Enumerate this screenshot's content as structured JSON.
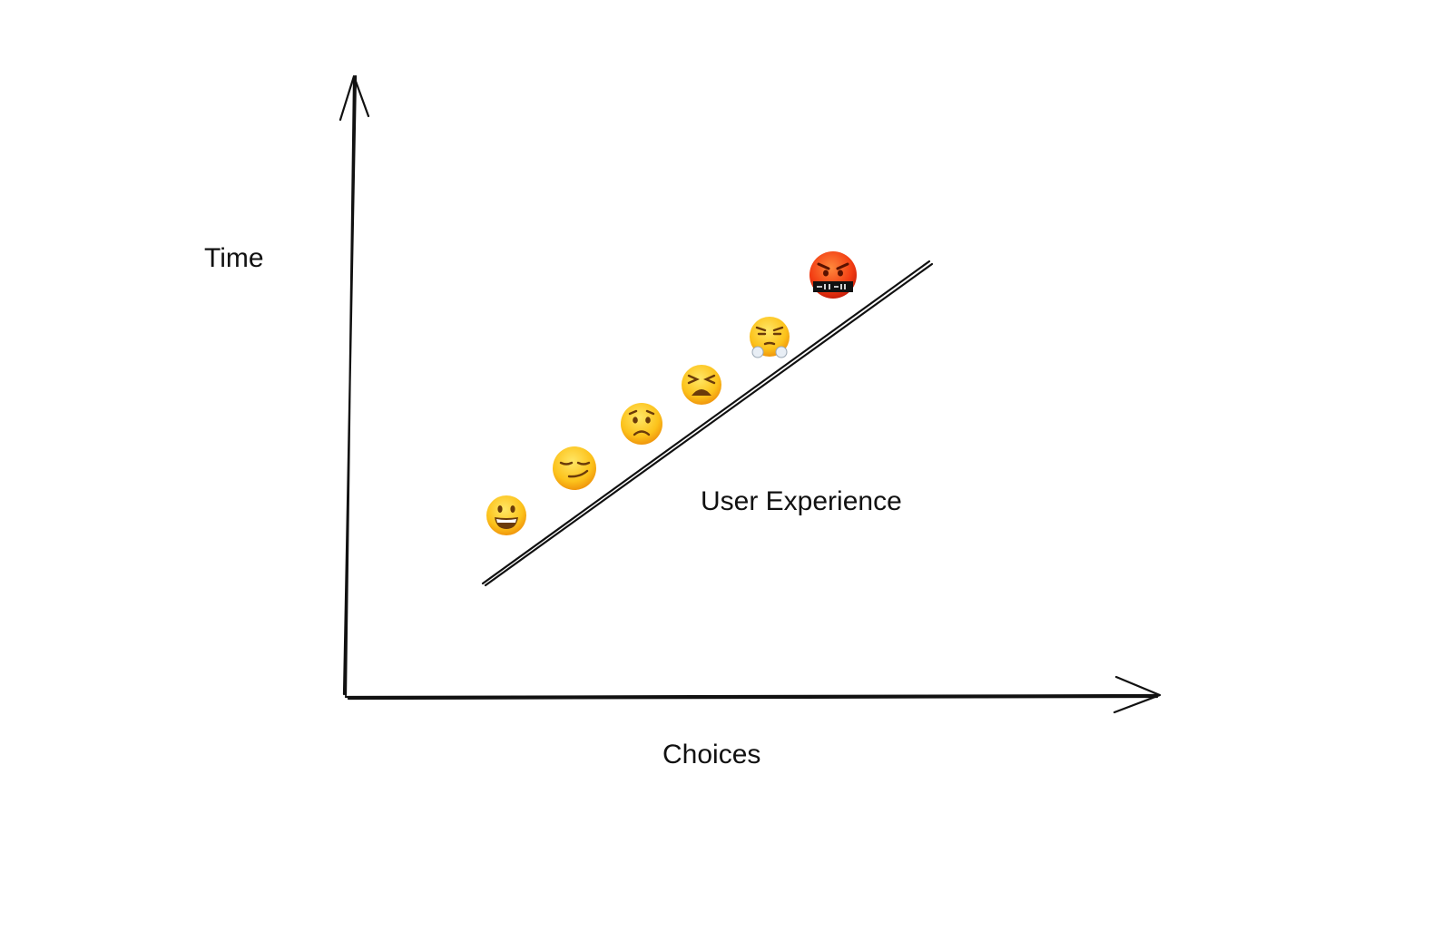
{
  "labels": {
    "y_axis": "Time",
    "x_axis": "Choices",
    "line": "User Experience"
  }
}
